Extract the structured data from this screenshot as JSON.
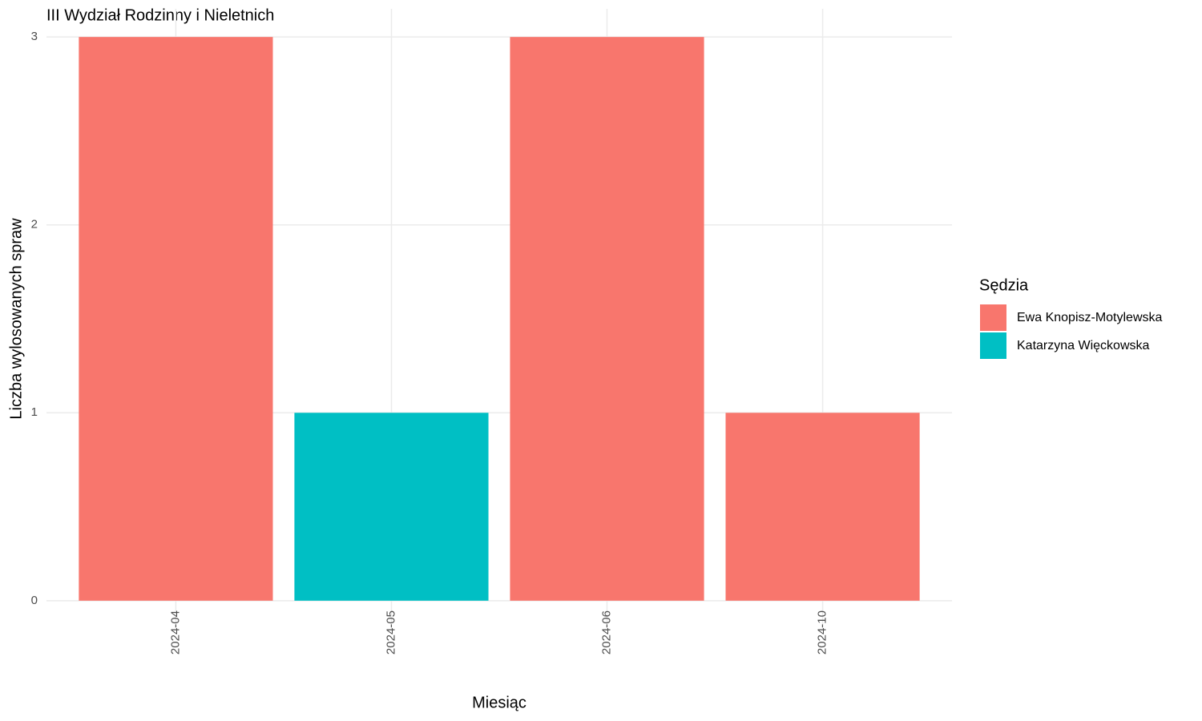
{
  "chart_data": {
    "type": "bar",
    "stacked": true,
    "title": "III Wydział Rodzinny i Nieletnich",
    "x_label": "Miesiąc",
    "y_label": "Liczba wylosowanych spraw",
    "legend_title": "Sędzia",
    "legend_position": "right",
    "categories": [
      "2024-04",
      "2024-05",
      "2024-06",
      "2024-10"
    ],
    "series": [
      {
        "name": "Ewa Knopisz-Motylewska",
        "color": "#f8766d",
        "values": [
          3,
          0,
          3,
          1
        ]
      },
      {
        "name": "Katarzyna Więckowska",
        "color": "#00bfc4",
        "values": [
          0,
          1,
          0,
          0
        ]
      }
    ],
    "ylim": [
      -0.15,
      3.15
    ],
    "yticks": [
      0,
      1,
      2,
      3
    ],
    "grid": true
  }
}
